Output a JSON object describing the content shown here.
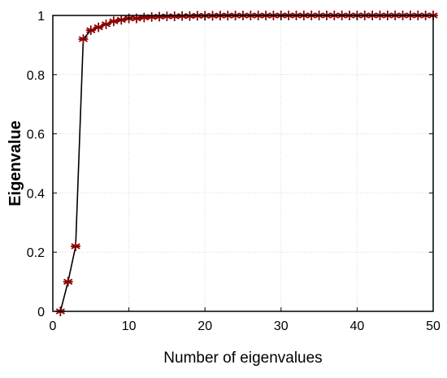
{
  "chart_data": {
    "type": "line",
    "title": "",
    "xlabel": "Number of eigenvalues",
    "ylabel": "Eigenvalue",
    "xlim": [
      0,
      50
    ],
    "ylim": [
      0,
      1
    ],
    "xticks": [
      "0",
      "10",
      "20",
      "30",
      "40",
      "50"
    ],
    "yticks": [
      "0",
      "0.2",
      "0.4",
      "0.6",
      "0.8",
      "1"
    ],
    "grid": true,
    "marker": "asterisk",
    "colors": {
      "line": "#000000",
      "marker": "#8b0000",
      "grid": "#d9d9d9"
    },
    "series": [
      {
        "x": [
          1,
          2,
          3,
          4,
          5,
          6,
          7,
          8,
          9,
          10,
          11,
          12,
          13,
          14,
          15,
          16,
          17,
          18,
          19,
          20,
          21,
          22,
          23,
          24,
          25,
          26,
          27,
          28,
          29,
          30,
          31,
          32,
          33,
          34,
          35,
          36,
          37,
          38,
          39,
          40,
          41,
          42,
          43,
          44,
          45,
          46,
          47,
          48,
          49,
          50
        ],
        "values": [
          0.0,
          0.1,
          0.22,
          0.92,
          0.95,
          0.96,
          0.97,
          0.98,
          0.985,
          0.99,
          0.99,
          0.993,
          0.995,
          0.996,
          0.997,
          0.997,
          0.998,
          0.998,
          0.999,
          0.999,
          0.999,
          0.9995,
          0.9995,
          0.9996,
          0.9997,
          0.9997,
          0.9998,
          0.9998,
          0.9998,
          0.9999,
          0.9999,
          0.9999,
          0.9999,
          1.0,
          1.0,
          1.0,
          1.0,
          1.0,
          1.0,
          1.0,
          1.0,
          1.0,
          1.0,
          1.0,
          1.0,
          1.0,
          1.0,
          1.0,
          1.0,
          1.0
        ]
      }
    ]
  }
}
